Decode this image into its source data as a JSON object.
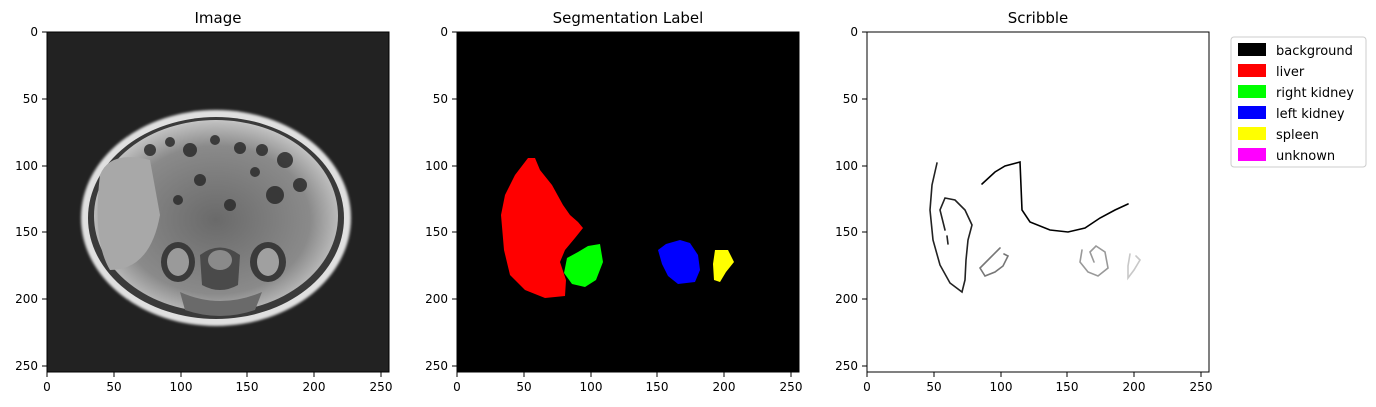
{
  "panels": [
    {
      "title": "Image",
      "xticks": [
        "0",
        "50",
        "100",
        "150",
        "200",
        "250"
      ],
      "yticks": [
        "0",
        "50",
        "100",
        "150",
        "200",
        "250"
      ]
    },
    {
      "title": "Segmentation Label",
      "xticks": [
        "0",
        "50",
        "100",
        "150",
        "200",
        "250"
      ],
      "yticks": [
        "0",
        "50",
        "100",
        "150",
        "200",
        "250"
      ]
    },
    {
      "title": "Scribble",
      "xticks": [
        "0",
        "50",
        "100",
        "150",
        "200",
        "250"
      ],
      "yticks": [
        "0",
        "50",
        "100",
        "150",
        "200",
        "250"
      ]
    }
  ],
  "legend": {
    "entries": [
      {
        "label": "background",
        "color": "#000000"
      },
      {
        "label": "liver",
        "color": "#ff0000"
      },
      {
        "label": "right kidney",
        "color": "#00ff00"
      },
      {
        "label": "left kidney",
        "color": "#0000ff"
      },
      {
        "label": "spleen",
        "color": "#ffff00"
      },
      {
        "label": "unknown",
        "color": "#ff00ff"
      }
    ]
  }
}
